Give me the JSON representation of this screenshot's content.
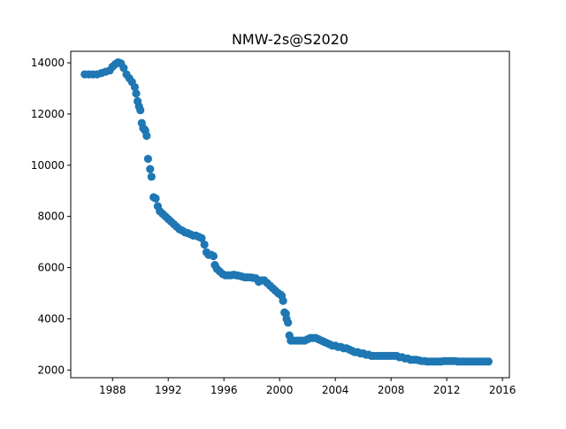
{
  "chart_data": {
    "type": "scatter",
    "title": "NMW-2s@S2020",
    "xlabel": "",
    "ylabel": "",
    "xlim": [
      1985.0,
      2016.5
    ],
    "ylim": [
      1700,
      14450
    ],
    "x_ticks": [
      {
        "value": 1988,
        "label": "1988"
      },
      {
        "value": 1992,
        "label": "1992"
      },
      {
        "value": 1996,
        "label": "1996"
      },
      {
        "value": 2000,
        "label": "2000"
      },
      {
        "value": 2004,
        "label": "2004"
      },
      {
        "value": 2008,
        "label": "2008"
      },
      {
        "value": 2012,
        "label": "2012"
      },
      {
        "value": 2016,
        "label": "2016"
      }
    ],
    "y_ticks": [
      {
        "value": 2000,
        "label": "2000"
      },
      {
        "value": 4000,
        "label": "4000"
      },
      {
        "value": 6000,
        "label": "6000"
      },
      {
        "value": 8000,
        "label": "8000"
      },
      {
        "value": 10000,
        "label": "10000"
      },
      {
        "value": 12000,
        "label": "12000"
      },
      {
        "value": 14000,
        "label": "14000"
      }
    ],
    "grid": false,
    "legend": "none",
    "color": "#1f77b4",
    "series": [
      {
        "points": [
          [
            1986.0,
            13550
          ],
          [
            1986.3,
            13550
          ],
          [
            1986.6,
            13550
          ],
          [
            1986.9,
            13550
          ],
          [
            1987.2,
            13600
          ],
          [
            1987.5,
            13650
          ],
          [
            1987.8,
            13700
          ],
          [
            1988.0,
            13850
          ],
          [
            1988.2,
            13950
          ],
          [
            1988.4,
            14020
          ],
          [
            1988.6,
            13980
          ],
          [
            1988.8,
            13800
          ],
          [
            1989.0,
            13550
          ],
          [
            1989.2,
            13400
          ],
          [
            1989.4,
            13250
          ],
          [
            1989.6,
            13050
          ],
          [
            1989.7,
            12800
          ],
          [
            1989.8,
            12500
          ],
          [
            1989.9,
            12300
          ],
          [
            1990.0,
            12150
          ],
          [
            1990.1,
            11650
          ],
          [
            1990.2,
            11450
          ],
          [
            1990.3,
            11400
          ],
          [
            1990.35,
            11350
          ],
          [
            1990.45,
            11150
          ],
          [
            1990.55,
            10250
          ],
          [
            1990.7,
            9850
          ],
          [
            1990.8,
            9550
          ],
          [
            1990.95,
            8750
          ],
          [
            1991.1,
            8700
          ],
          [
            1991.25,
            8400
          ],
          [
            1991.4,
            8200
          ],
          [
            1991.6,
            8100
          ],
          [
            1991.8,
            8000
          ],
          [
            1992.0,
            7900
          ],
          [
            1992.2,
            7800
          ],
          [
            1992.4,
            7700
          ],
          [
            1992.6,
            7600
          ],
          [
            1992.8,
            7500
          ],
          [
            1993.0,
            7450
          ],
          [
            1993.2,
            7380
          ],
          [
            1993.4,
            7350
          ],
          [
            1993.6,
            7300
          ],
          [
            1993.8,
            7250
          ],
          [
            1994.0,
            7250
          ],
          [
            1994.2,
            7200
          ],
          [
            1994.4,
            7150
          ],
          [
            1994.6,
            6900
          ],
          [
            1994.75,
            6600
          ],
          [
            1994.9,
            6500
          ],
          [
            1995.1,
            6500
          ],
          [
            1995.25,
            6450
          ],
          [
            1995.35,
            6100
          ],
          [
            1995.5,
            5950
          ],
          [
            1995.7,
            5850
          ],
          [
            1995.9,
            5750
          ],
          [
            1996.1,
            5700
          ],
          [
            1996.3,
            5700
          ],
          [
            1996.5,
            5700
          ],
          [
            1996.7,
            5720
          ],
          [
            1996.9,
            5700
          ],
          [
            1997.1,
            5680
          ],
          [
            1997.3,
            5650
          ],
          [
            1997.5,
            5620
          ],
          [
            1997.7,
            5620
          ],
          [
            1997.9,
            5620
          ],
          [
            1998.1,
            5600
          ],
          [
            1998.3,
            5580
          ],
          [
            1998.5,
            5450
          ],
          [
            1998.7,
            5500
          ],
          [
            1998.9,
            5500
          ],
          [
            1999.1,
            5400
          ],
          [
            1999.3,
            5300
          ],
          [
            1999.5,
            5200
          ],
          [
            1999.7,
            5100
          ],
          [
            1999.9,
            5000
          ],
          [
            2000.05,
            4950
          ],
          [
            2000.15,
            4900
          ],
          [
            2000.25,
            4700
          ],
          [
            2000.35,
            4250
          ],
          [
            2000.45,
            4200
          ],
          [
            2000.5,
            4000
          ],
          [
            2000.6,
            3850
          ],
          [
            2000.7,
            3350
          ],
          [
            2000.8,
            3150
          ],
          [
            2001.0,
            3150
          ],
          [
            2001.2,
            3150
          ],
          [
            2001.4,
            3150
          ],
          [
            2001.6,
            3150
          ],
          [
            2001.8,
            3150
          ],
          [
            2002.0,
            3200
          ],
          [
            2002.2,
            3250
          ],
          [
            2002.4,
            3250
          ],
          [
            2002.6,
            3250
          ],
          [
            2002.8,
            3200
          ],
          [
            2003.0,
            3150
          ],
          [
            2003.2,
            3100
          ],
          [
            2003.4,
            3050
          ],
          [
            2003.6,
            3000
          ],
          [
            2003.8,
            2950
          ],
          [
            2004.0,
            2950
          ],
          [
            2004.2,
            2900
          ],
          [
            2004.4,
            2900
          ],
          [
            2004.6,
            2850
          ],
          [
            2004.8,
            2850
          ],
          [
            2005.0,
            2800
          ],
          [
            2005.2,
            2750
          ],
          [
            2005.4,
            2700
          ],
          [
            2005.6,
            2700
          ],
          [
            2005.8,
            2650
          ],
          [
            2006.0,
            2650
          ],
          [
            2006.2,
            2600
          ],
          [
            2006.4,
            2600
          ],
          [
            2006.6,
            2550
          ],
          [
            2006.8,
            2550
          ],
          [
            2007.0,
            2550
          ],
          [
            2007.2,
            2550
          ],
          [
            2007.4,
            2550
          ],
          [
            2007.6,
            2550
          ],
          [
            2007.8,
            2550
          ],
          [
            2008.0,
            2550
          ],
          [
            2008.2,
            2550
          ],
          [
            2008.4,
            2550
          ],
          [
            2008.6,
            2500
          ],
          [
            2008.8,
            2500
          ],
          [
            2009.0,
            2450
          ],
          [
            2009.2,
            2450
          ],
          [
            2009.4,
            2400
          ],
          [
            2009.6,
            2400
          ],
          [
            2009.8,
            2400
          ],
          [
            2010.0,
            2380
          ],
          [
            2010.2,
            2350
          ],
          [
            2010.4,
            2350
          ],
          [
            2010.6,
            2330
          ],
          [
            2010.8,
            2330
          ],
          [
            2011.0,
            2330
          ],
          [
            2011.2,
            2330
          ],
          [
            2011.4,
            2330
          ],
          [
            2011.6,
            2330
          ],
          [
            2011.8,
            2350
          ],
          [
            2012.0,
            2350
          ],
          [
            2012.2,
            2350
          ],
          [
            2012.4,
            2350
          ],
          [
            2012.6,
            2350
          ],
          [
            2012.8,
            2330
          ],
          [
            2013.0,
            2330
          ],
          [
            2013.2,
            2330
          ],
          [
            2013.4,
            2330
          ],
          [
            2013.6,
            2330
          ],
          [
            2013.8,
            2330
          ],
          [
            2014.0,
            2330
          ],
          [
            2014.2,
            2330
          ],
          [
            2014.4,
            2330
          ],
          [
            2014.6,
            2330
          ],
          [
            2014.8,
            2330
          ],
          [
            2015.0,
            2330
          ]
        ]
      }
    ]
  }
}
